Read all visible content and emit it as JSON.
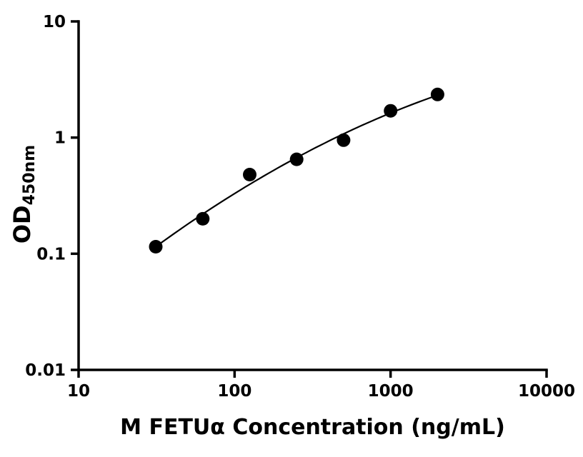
{
  "chart_data": {
    "type": "scatter",
    "title": "",
    "xlabel": "M FETUα Concentration (ng/mL)",
    "ylabel": "OD450nm",
    "ylabel_main": "OD",
    "ylabel_sub": "450nm",
    "x_scale": "log",
    "y_scale": "log",
    "xlim": [
      10,
      10000
    ],
    "ylim": [
      0.01,
      10
    ],
    "x_ticks": [
      10,
      100,
      1000,
      10000
    ],
    "x_tick_labels": [
      "10",
      "100",
      "1000",
      "10000"
    ],
    "y_ticks": [
      0.01,
      0.1,
      1,
      10
    ],
    "y_tick_labels": [
      "0.01",
      "0.1",
      "1",
      "10"
    ],
    "points": [
      {
        "x": 31.25,
        "y": 0.115
      },
      {
        "x": 62.5,
        "y": 0.2
      },
      {
        "x": 125,
        "y": 0.48
      },
      {
        "x": 250,
        "y": 0.65
      },
      {
        "x": 500,
        "y": 0.95
      },
      {
        "x": 1000,
        "y": 1.7
      },
      {
        "x": 2000,
        "y": 2.35
      }
    ],
    "fit_line": true,
    "grid": false,
    "legend": false,
    "marker_color": "#000000",
    "line_color": "#000000",
    "axis_color": "#000000"
  }
}
